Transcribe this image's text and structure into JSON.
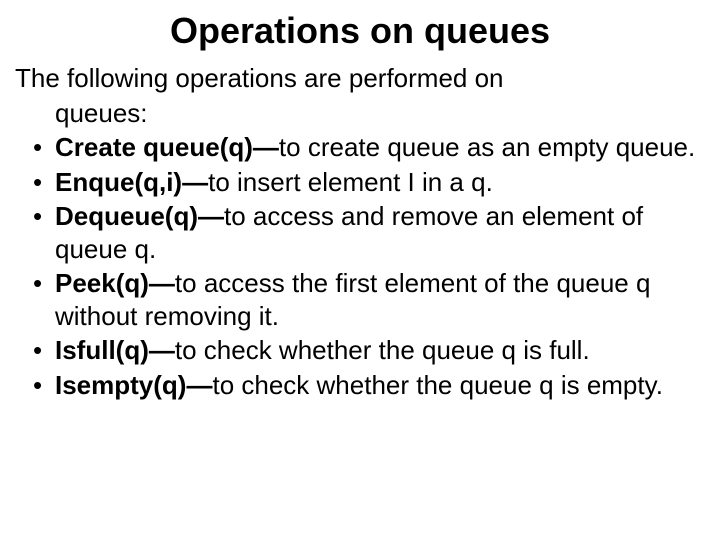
{
  "title": "Operations on queues",
  "intro_line1": "The following operations are performed on",
  "intro_line2": "queues:",
  "items": [
    {
      "bold": "Create queue(q)—",
      "text": "to create queue as an empty queue."
    },
    {
      "bold": "Enque(q,i)—",
      "text": "to insert element I in a q."
    },
    {
      "bold": "Dequeue(q)—",
      "text": "to access and remove an element of queue q."
    },
    {
      "bold": "Peek(q)—",
      "text": "to access the first element of the queue q without removing it."
    },
    {
      "bold": "Isfull(q)—",
      "text": "to check whether the queue q is full."
    },
    {
      "bold": "Isempty(q)—",
      "text": "to check whether the queue q is empty."
    }
  ]
}
